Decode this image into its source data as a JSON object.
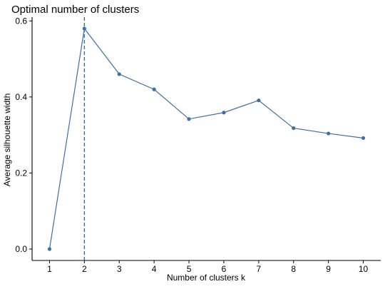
{
  "chart_data": {
    "type": "line",
    "title": "Optimal number of clusters",
    "xlabel": "Number of clusters k",
    "ylabel": "Average silhouette width",
    "x": [
      1,
      2,
      3,
      4,
      5,
      6,
      7,
      8,
      9,
      10
    ],
    "series": [
      {
        "values": [
          0.0,
          0.58,
          0.46,
          0.42,
          0.342,
          0.359,
          0.391,
          0.318,
          0.304,
          0.292
        ],
        "color": "#3B6FA5"
      }
    ],
    "xlim": [
      0.5,
      10.5
    ],
    "ylim": [
      -0.03,
      0.61
    ],
    "y_ticks": [
      0.0,
      0.2,
      0.4,
      0.6
    ],
    "y_tick_labels": [
      "0.0",
      "0.2",
      "0.4",
      "0.6"
    ],
    "x_tick_labels": [
      "1",
      "2",
      "3",
      "4",
      "5",
      "6",
      "7",
      "8",
      "9",
      "10"
    ],
    "vline": {
      "x": 2,
      "style": "dashed",
      "color": "#3B6FA5"
    },
    "grid": false,
    "legend": "none"
  }
}
